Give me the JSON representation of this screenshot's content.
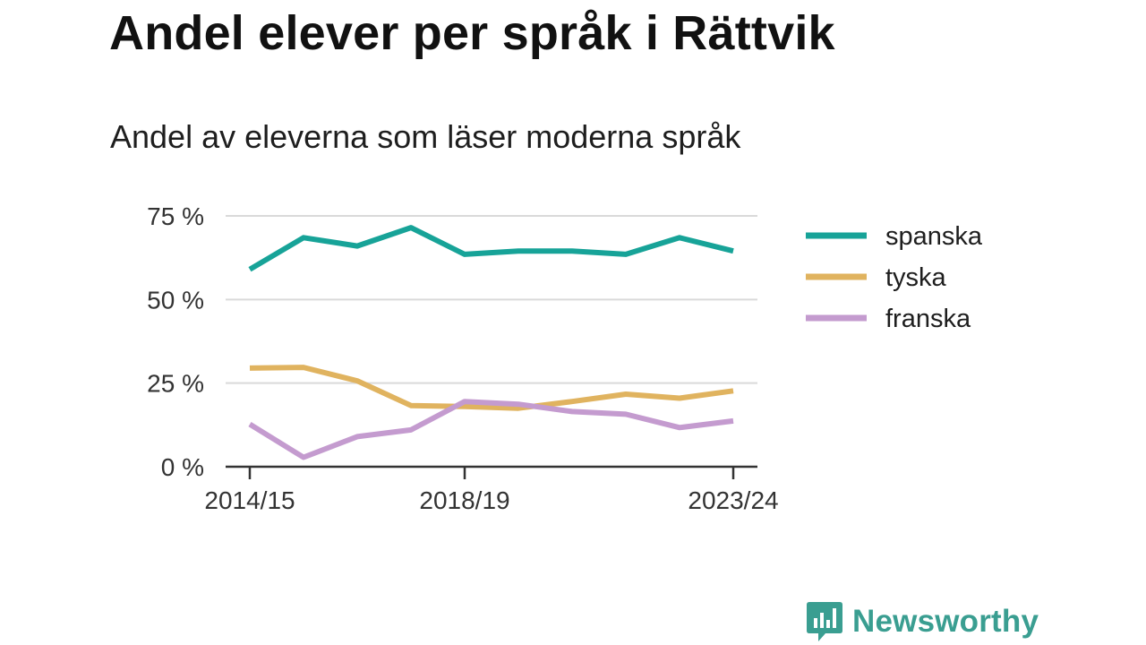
{
  "title": "Andel elever per språk i Rättvik",
  "subtitle": "Andel av eleverna som läser moderna språk",
  "brand": {
    "name": "Newsworthy",
    "icon": "newsworthy-logo-icon",
    "color": "#3a9e91"
  },
  "chart_data": {
    "type": "line",
    "title": "Andel elever per språk i Rättvik",
    "subtitle": "Andel av eleverna som läser moderna språk",
    "x": [
      "2014/15",
      "2015/16",
      "2016/17",
      "2017/18",
      "2018/19",
      "2019/20",
      "2020/21",
      "2021/22",
      "2022/23",
      "2023/24"
    ],
    "x_tick_labels": [
      "2014/15",
      "2018/19",
      "2023/24"
    ],
    "y_ticks": [
      0,
      25,
      50,
      75
    ],
    "y_tick_labels": [
      "0 %",
      "25 %",
      "50 %",
      "75 %"
    ],
    "ylim": [
      0,
      75
    ],
    "xlabel": "",
    "ylabel": "",
    "grid": true,
    "legend_position": "right",
    "series": [
      {
        "name": "spanska",
        "color": "#17a398",
        "values": [
          59,
          68.5,
          66,
          71.5,
          63.5,
          64.5,
          64.5,
          63.5,
          68.5,
          64.5
        ]
      },
      {
        "name": "tyska",
        "color": "#e0b35f",
        "values": [
          29.5,
          29.7,
          25.7,
          18.3,
          18,
          17.5,
          19.5,
          21.7,
          20.5,
          22.7
        ]
      },
      {
        "name": "franska",
        "color": "#c49bcf",
        "values": [
          12.7,
          2.8,
          9,
          11,
          19.5,
          18.7,
          16.5,
          15.7,
          11.7,
          13.7
        ]
      }
    ]
  }
}
